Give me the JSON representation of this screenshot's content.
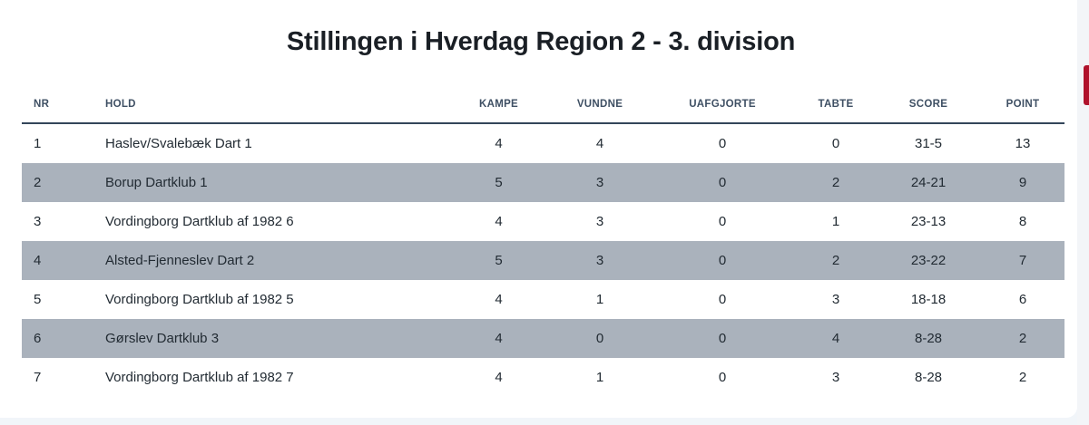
{
  "title": "Stillingen i Hverdag Region 2 - 3. division",
  "table": {
    "headers": {
      "nr": "NR",
      "hold": "HOLD",
      "kampe": "KAMPE",
      "vundne": "VUNDNE",
      "uafgjorte": "UAFGJORTE",
      "tabte": "TABTE",
      "score": "SCORE",
      "point": "POINT"
    },
    "rows": [
      {
        "nr": "1",
        "hold": "Haslev/Svalebæk Dart 1",
        "kampe": "4",
        "vundne": "4",
        "uafgjorte": "0",
        "tabte": "0",
        "score": "31-5",
        "point": "13"
      },
      {
        "nr": "2",
        "hold": "Borup Dartklub 1",
        "kampe": "5",
        "vundne": "3",
        "uafgjorte": "0",
        "tabte": "2",
        "score": "24-21",
        "point": "9"
      },
      {
        "nr": "3",
        "hold": "Vordingborg Dartklub af 1982 6",
        "kampe": "4",
        "vundne": "3",
        "uafgjorte": "0",
        "tabte": "1",
        "score": "23-13",
        "point": "8"
      },
      {
        "nr": "4",
        "hold": "Alsted-Fjenneslev Dart 2",
        "kampe": "5",
        "vundne": "3",
        "uafgjorte": "0",
        "tabte": "2",
        "score": "23-22",
        "point": "7"
      },
      {
        "nr": "5",
        "hold": "Vordingborg Dartklub af 1982 5",
        "kampe": "4",
        "vundne": "1",
        "uafgjorte": "0",
        "tabte": "3",
        "score": "18-18",
        "point": "6"
      },
      {
        "nr": "6",
        "hold": "Gørslev Dartklub 3",
        "kampe": "4",
        "vundne": "0",
        "uafgjorte": "0",
        "tabte": "4",
        "score": "8-28",
        "point": "2"
      },
      {
        "nr": "7",
        "hold": "Vordingborg Dartklub af 1982 7",
        "kampe": "4",
        "vundne": "1",
        "uafgjorte": "0",
        "tabte": "3",
        "score": "8-28",
        "point": "2"
      }
    ]
  },
  "colors": {
    "row_stripe": "#aab2bc",
    "header_rule": "#33465a",
    "edge_accent": "#b0122c"
  }
}
